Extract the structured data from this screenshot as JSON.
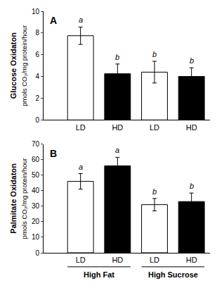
{
  "chart_data": [
    {
      "type": "bar",
      "title": "A",
      "categories": [
        "LD",
        "HD",
        "LD",
        "HD"
      ],
      "values": [
        7.75,
        4.25,
        4.4,
        4.0
      ],
      "errors": [
        0.8,
        0.9,
        1.0,
        0.8
      ],
      "colors": [
        "#ffffff",
        "#000000",
        "#ffffff",
        "#000000"
      ],
      "annotations": [
        "a",
        "b",
        "b",
        "b"
      ],
      "ylabel": [
        "Glucose Oxidaton",
        "pmols CO₂/mg protein/hour"
      ],
      "ylim": [
        0,
        10
      ],
      "yticks": [
        0,
        2,
        4,
        6,
        8,
        10
      ],
      "grid": false
    },
    {
      "type": "bar",
      "title": "B",
      "categories": [
        "LD",
        "HD",
        "LD",
        "HD"
      ],
      "values": [
        46.0,
        56.0,
        31.0,
        33.0
      ],
      "errors": [
        5.0,
        5.5,
        4.0,
        5.5
      ],
      "colors": [
        "#ffffff",
        "#000000",
        "#ffffff",
        "#000000"
      ],
      "annotations": [
        "a",
        "a",
        "b",
        "b"
      ],
      "ylabel": [
        "Palmitate Oxidaton",
        "pmols CO₂/mg protein/hour"
      ],
      "group_labels": [
        "High Fat",
        "High Sucrose"
      ],
      "ylim": [
        0,
        70
      ],
      "yticks": [
        0,
        10,
        20,
        30,
        40,
        50,
        60,
        70
      ],
      "grid": false
    }
  ]
}
